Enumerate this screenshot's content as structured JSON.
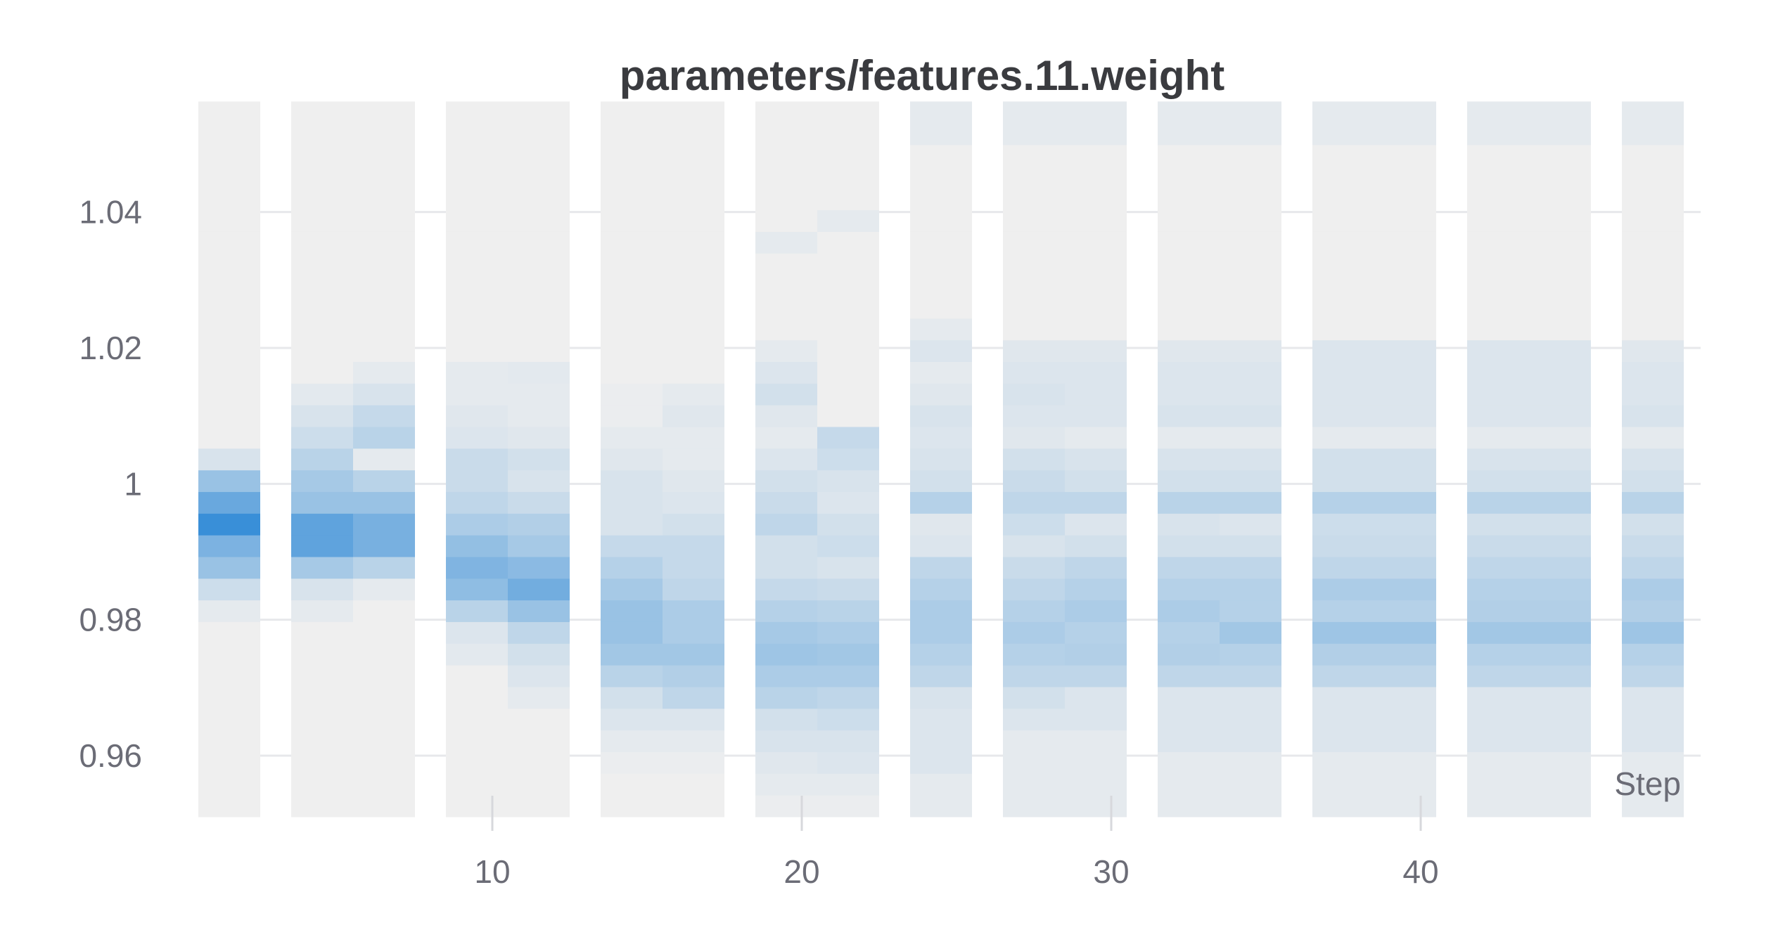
{
  "chart_data": {
    "type": "heatmap",
    "title": "parameters/features.11.weight",
    "xlabel": "Step",
    "ylabel": "",
    "xlim": [
      1,
      49
    ],
    "ylim": [
      0.951,
      1.053
    ],
    "bin_edges_start": 0.951,
    "bin_size": 0.00319,
    "x_ticks": [
      10,
      20,
      30,
      40
    ],
    "y_ticks": [
      0.96,
      0.98,
      1,
      1.02,
      1.04
    ],
    "y_tick_labels": [
      "0.96",
      "0.98",
      "1",
      "1.02",
      "1.04"
    ],
    "grid": true,
    "colors": {
      "empty": "#efefef",
      "accent": "#2f8ad7",
      "grid": "#e7e8eb",
      "tick_text": "#6b6c76",
      "title_text": "#3a3b3f"
    },
    "columns": [
      {
        "step_start": 1,
        "step_end": 3,
        "intensity": [
          0,
          0,
          0,
          0,
          0,
          0,
          0,
          0,
          0,
          0.05,
          0.18,
          0.45,
          0.6,
          0.95,
          0.7,
          0.45,
          0.12,
          0,
          0,
          0,
          0,
          0,
          0,
          0,
          0,
          0,
          0,
          0,
          0,
          0,
          0,
          0,
          0
        ]
      },
      {
        "step_start": 4,
        "step_end": 6,
        "intensity": [
          0,
          0,
          0,
          0,
          0,
          0,
          0,
          0,
          0,
          0.05,
          0.12,
          0.38,
          0.75,
          0.75,
          0.45,
          0.38,
          0.28,
          0.18,
          0.12,
          0.06,
          0,
          0,
          0,
          0,
          0,
          0,
          0,
          0,
          0,
          0,
          0,
          0,
          0
        ]
      },
      {
        "step_start": 6,
        "step_end": 8,
        "intensity": [
          0,
          0,
          0,
          0,
          0,
          0,
          0,
          0,
          0,
          0,
          0.05,
          0.28,
          0.62,
          0.62,
          0.45,
          0.28,
          0.05,
          0.28,
          0.22,
          0.12,
          0.05,
          0,
          0,
          0,
          0,
          0,
          0,
          0,
          0,
          0,
          0,
          0,
          0
        ]
      },
      {
        "step_start": 9,
        "step_end": 11,
        "intensity": [
          0,
          0,
          0,
          0,
          0,
          0,
          0,
          0.06,
          0.1,
          0.28,
          0.5,
          0.58,
          0.48,
          0.35,
          0.25,
          0.2,
          0.2,
          0.1,
          0.08,
          0.05,
          0.05,
          0,
          0,
          0,
          0,
          0,
          0,
          0,
          0,
          0,
          0,
          0,
          0
        ]
      },
      {
        "step_start": 11,
        "step_end": 13,
        "intensity": [
          0,
          0,
          0,
          0,
          0,
          0.05,
          0.1,
          0.15,
          0.25,
          0.45,
          0.65,
          0.52,
          0.38,
          0.32,
          0.2,
          0.12,
          0.15,
          0.08,
          0.05,
          0.05,
          0.06,
          0,
          0,
          0,
          0,
          0,
          0,
          0,
          0,
          0,
          0,
          0,
          0
        ]
      },
      {
        "step_start": 14,
        "step_end": 16,
        "intensity": [
          0,
          0,
          0.02,
          0.05,
          0.1,
          0.15,
          0.28,
          0.4,
          0.45,
          0.45,
          0.38,
          0.3,
          0.22,
          0.12,
          0.12,
          0.12,
          0.08,
          0.05,
          0.02,
          0.02,
          0,
          0,
          0,
          0,
          0,
          0,
          0,
          0,
          0,
          0,
          0,
          0,
          0
        ]
      },
      {
        "step_start": 16,
        "step_end": 18,
        "intensity": [
          0,
          0,
          0.02,
          0.05,
          0.1,
          0.25,
          0.32,
          0.4,
          0.35,
          0.35,
          0.25,
          0.22,
          0.22,
          0.15,
          0.1,
          0.08,
          0.05,
          0.05,
          0.08,
          0.05,
          0,
          0,
          0,
          0,
          0,
          0,
          0,
          0,
          0,
          0,
          0,
          0,
          0
        ]
      },
      {
        "step_start": 19,
        "step_end": 21,
        "intensity": [
          0.02,
          0.05,
          0.08,
          0.12,
          0.15,
          0.28,
          0.35,
          0.42,
          0.38,
          0.3,
          0.22,
          0.15,
          0.15,
          0.25,
          0.2,
          0.15,
          0.1,
          0.05,
          0.08,
          0.15,
          0.1,
          0.05,
          0,
          0,
          0,
          0,
          0.05,
          0,
          0,
          0,
          0,
          0,
          0
        ]
      },
      {
        "step_start": 21,
        "step_end": 23,
        "intensity": [
          0.02,
          0.05,
          0.1,
          0.12,
          0.18,
          0.25,
          0.35,
          0.4,
          0.35,
          0.28,
          0.2,
          0.12,
          0.18,
          0.15,
          0.1,
          0.12,
          0.18,
          0.22,
          0,
          0,
          0,
          0,
          0,
          0,
          0,
          0,
          0,
          0.05,
          0,
          0,
          0,
          0,
          0
        ]
      },
      {
        "step_start": 24,
        "step_end": 26,
        "intensity": [
          0.05,
          0.05,
          0.1,
          0.1,
          0.1,
          0.12,
          0.25,
          0.3,
          0.35,
          0.35,
          0.3,
          0.25,
          0.1,
          0.08,
          0.3,
          0.15,
          0.12,
          0.1,
          0.12,
          0.08,
          0.05,
          0.1,
          0.05,
          0,
          0,
          0,
          0,
          0,
          0,
          0,
          0,
          0.05,
          0.05
        ]
      },
      {
        "step_start": 27,
        "step_end": 29,
        "intensity": [
          0.05,
          0.05,
          0.05,
          0.05,
          0.1,
          0.15,
          0.25,
          0.3,
          0.35,
          0.3,
          0.25,
          0.2,
          0.12,
          0.18,
          0.25,
          0.2,
          0.15,
          0.08,
          0.1,
          0.12,
          0.1,
          0.08,
          0,
          0,
          0,
          0,
          0,
          0,
          0,
          0,
          0,
          0.05,
          0.05
        ]
      },
      {
        "step_start": 29,
        "step_end": 31,
        "intensity": [
          0.05,
          0.05,
          0.05,
          0.05,
          0.1,
          0.1,
          0.25,
          0.32,
          0.3,
          0.35,
          0.3,
          0.25,
          0.15,
          0.1,
          0.25,
          0.15,
          0.12,
          0.05,
          0.1,
          0.1,
          0.1,
          0.08,
          0,
          0,
          0,
          0,
          0,
          0,
          0,
          0,
          0,
          0.05,
          0.05
        ]
      },
      {
        "step_start": 32,
        "step_end": 34,
        "intensity": [
          0.05,
          0.05,
          0.05,
          0.1,
          0.1,
          0.1,
          0.25,
          0.32,
          0.3,
          0.35,
          0.3,
          0.25,
          0.15,
          0.12,
          0.28,
          0.15,
          0.12,
          0.05,
          0.12,
          0.1,
          0.1,
          0.08,
          0,
          0,
          0,
          0,
          0,
          0,
          0,
          0,
          0,
          0.05,
          0.05
        ]
      },
      {
        "step_start": 34,
        "step_end": 36,
        "intensity": [
          0.05,
          0.05,
          0.05,
          0.1,
          0.1,
          0.1,
          0.25,
          0.3,
          0.4,
          0.3,
          0.3,
          0.25,
          0.15,
          0.1,
          0.28,
          0.15,
          0.12,
          0.05,
          0.12,
          0.1,
          0.1,
          0.08,
          0,
          0,
          0,
          0,
          0,
          0,
          0,
          0,
          0,
          0.05,
          0.05
        ]
      },
      {
        "step_start": 37,
        "step_end": 41,
        "intensity": [
          0.05,
          0.05,
          0.05,
          0.1,
          0.1,
          0.1,
          0.25,
          0.32,
          0.42,
          0.3,
          0.35,
          0.25,
          0.2,
          0.18,
          0.3,
          0.15,
          0.15,
          0.05,
          0.1,
          0.1,
          0.1,
          0.1,
          0,
          0,
          0,
          0,
          0,
          0,
          0,
          0,
          0,
          0.05,
          0.05
        ]
      },
      {
        "step_start": 42,
        "step_end": 46,
        "intensity": [
          0.05,
          0.05,
          0.05,
          0.1,
          0.1,
          0.1,
          0.25,
          0.3,
          0.4,
          0.32,
          0.3,
          0.25,
          0.2,
          0.15,
          0.28,
          0.15,
          0.12,
          0.05,
          0.1,
          0.1,
          0.1,
          0.1,
          0,
          0,
          0,
          0,
          0,
          0,
          0,
          0,
          0,
          0.05,
          0.05
        ]
      },
      {
        "step_start": 47,
        "step_end": 49,
        "intensity": [
          0.05,
          0.05,
          0.05,
          0.1,
          0.1,
          0.1,
          0.25,
          0.3,
          0.42,
          0.32,
          0.35,
          0.25,
          0.2,
          0.15,
          0.28,
          0.15,
          0.12,
          0.05,
          0.12,
          0.1,
          0.1,
          0.08,
          0,
          0,
          0,
          0,
          0,
          0,
          0,
          0,
          0,
          0.05,
          0.05
        ]
      }
    ]
  }
}
